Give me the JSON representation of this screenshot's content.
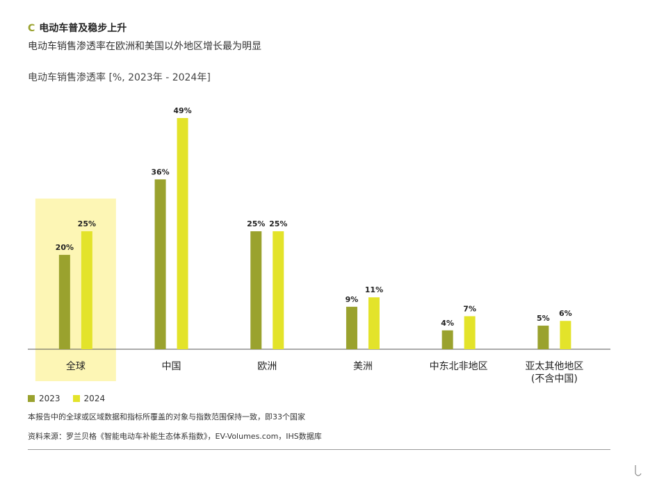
{
  "header": {
    "letter": "C",
    "title": "电动车普及稳步上升",
    "subtitle": "电动车销售渗透率在欧洲和美国以外地区增长最为明显"
  },
  "chart_title": "电动车销售渗透率 [%, 2023年 - 2024年]",
  "legend": [
    {
      "label": "2023",
      "color": "#9aa22e"
    },
    {
      "label": "2024",
      "color": "#e3e32a"
    }
  ],
  "highlight_color": "#fdf6b5",
  "footnote": "本报告中的全球或区域数据和指标所覆盖的对象与指数范围保持一致，即33个国家",
  "source": "资料来源：罗兰贝格《智能电动车补能生态体系指数》，EV-Volumes.com，IHS数据库",
  "chart_data": {
    "type": "bar",
    "categories": [
      "全球",
      "中国",
      "欧洲",
      "美洲",
      "中东北非地区",
      "亚太其他地区\n(不含中国)"
    ],
    "highlighted_category": "全球",
    "series": [
      {
        "name": "2023",
        "color": "#9aa22e",
        "values": [
          20,
          36,
          25,
          9,
          4,
          5
        ],
        "labels": [
          "20%",
          "36%",
          "25%",
          "9%",
          "4%",
          "5%"
        ]
      },
      {
        "name": "2024",
        "color": "#e3e32a",
        "values": [
          25,
          49,
          25,
          11,
          7,
          6
        ],
        "labels": [
          "25%",
          "49%",
          "25%",
          "11%",
          "7%",
          "6%"
        ]
      }
    ],
    "unit": "%",
    "ylim": [
      0,
      50
    ],
    "grid": false
  }
}
